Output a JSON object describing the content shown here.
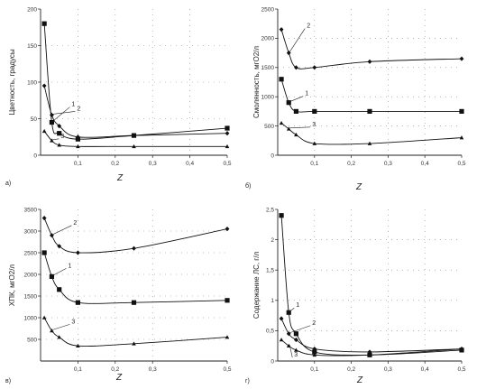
{
  "chart_data": [
    {
      "type": "line",
      "panel_label": "а)",
      "xlabel": "Z",
      "ylabel": "Цветность, градусы",
      "xlim": [
        0,
        0.5
      ],
      "ylim": [
        0,
        200
      ],
      "x_ticks": [
        "0,1",
        "0,2",
        "0,3",
        "0,4",
        "0,5"
      ],
      "y_ticks": [
        "0",
        "50",
        "100",
        "150",
        "200"
      ],
      "series": [
        {
          "name": "1",
          "marker": "square",
          "x": [
            0.01,
            0.03,
            0.05,
            0.1,
            0.25,
            0.5
          ],
          "y": [
            180,
            45,
            30,
            22,
            27,
            37
          ]
        },
        {
          "name": "2",
          "marker": "diamond",
          "x": [
            0.01,
            0.03,
            0.05,
            0.1,
            0.25,
            0.5
          ],
          "y": [
            95,
            55,
            40,
            25,
            27,
            30
          ]
        },
        {
          "name": "3",
          "marker": "triangle",
          "x": [
            0.01,
            0.03,
            0.05,
            0.1,
            0.25,
            0.5
          ],
          "y": [
            33,
            20,
            14,
            12,
            12,
            12
          ]
        }
      ]
    },
    {
      "type": "line",
      "panel_label": "б)",
      "xlabel": "Z",
      "ylabel": "Смолянность, мгО2/л",
      "xlim": [
        0,
        0.5
      ],
      "ylim": [
        0,
        2500
      ],
      "x_ticks": [
        "0,1",
        "0,2",
        "0,3",
        "0,4",
        "0,5"
      ],
      "y_ticks": [
        "0",
        "500",
        "1000",
        "1500",
        "2000",
        "2500"
      ],
      "series": [
        {
          "name": "2",
          "marker": "diamond",
          "x": [
            0.01,
            0.03,
            0.05,
            0.1,
            0.25,
            0.5
          ],
          "y": [
            2150,
            1750,
            1500,
            1500,
            1600,
            1650
          ]
        },
        {
          "name": "1",
          "marker": "square",
          "x": [
            0.01,
            0.03,
            0.05,
            0.1,
            0.25,
            0.5
          ],
          "y": [
            1300,
            900,
            750,
            750,
            750,
            750
          ]
        },
        {
          "name": "3",
          "marker": "triangle",
          "x": [
            0.01,
            0.03,
            0.05,
            0.1,
            0.25,
            0.5
          ],
          "y": [
            550,
            450,
            350,
            200,
            200,
            300
          ]
        }
      ]
    },
    {
      "type": "line",
      "panel_label": "в)",
      "xlabel": "Z",
      "ylabel": "ХПК, мгО2/л",
      "xlim": [
        0,
        0.5
      ],
      "ylim": [
        0,
        3500
      ],
      "x_ticks": [
        "0,1",
        "0,2",
        "0,3",
        "0,5"
      ],
      "y_ticks": [
        "500",
        "1000",
        "1500",
        "2000",
        "2500",
        "3000",
        "3500"
      ],
      "series": [
        {
          "name": "2",
          "marker": "diamond",
          "x": [
            0.01,
            0.03,
            0.05,
            0.1,
            0.25,
            0.5
          ],
          "y": [
            3300,
            2900,
            2650,
            2500,
            2600,
            3050
          ]
        },
        {
          "name": "1",
          "marker": "square",
          "x": [
            0.01,
            0.03,
            0.05,
            0.1,
            0.25,
            0.5
          ],
          "y": [
            2500,
            1950,
            1650,
            1350,
            1350,
            1400
          ]
        },
        {
          "name": "3",
          "marker": "triangle",
          "x": [
            0.01,
            0.03,
            0.05,
            0.1,
            0.25,
            0.5
          ],
          "y": [
            1000,
            700,
            550,
            350,
            400,
            550
          ]
        }
      ]
    },
    {
      "type": "line",
      "panel_label": "г)",
      "xlabel": "Z",
      "ylabel": "Содержание ЛС, г/л",
      "xlim": [
        0,
        0.5
      ],
      "ylim": [
        0,
        2.5
      ],
      "x_ticks": [
        "0,1",
        "0,2",
        "0,3",
        "0,4",
        "0,5"
      ],
      "y_ticks": [
        "0",
        "0,5",
        "1",
        "1,5",
        "2",
        "2,5"
      ],
      "series": [
        {
          "name": "1",
          "marker": "square",
          "x": [
            0.01,
            0.03,
            0.05,
            0.1,
            0.25,
            0.5
          ],
          "y": [
            2.4,
            0.8,
            0.45,
            0.15,
            0.1,
            0.18
          ]
        },
        {
          "name": "2",
          "marker": "diamond",
          "x": [
            0.01,
            0.03,
            0.05,
            0.1,
            0.25,
            0.5
          ],
          "y": [
            0.7,
            0.45,
            0.35,
            0.2,
            0.15,
            0.2
          ]
        },
        {
          "name": "3",
          "marker": "triangle",
          "x": [
            0.01,
            0.03,
            0.05,
            0.1,
            0.25,
            0.5
          ],
          "y": [
            0.35,
            0.25,
            0.18,
            0.1,
            0.1,
            0.2
          ]
        }
      ]
    }
  ]
}
